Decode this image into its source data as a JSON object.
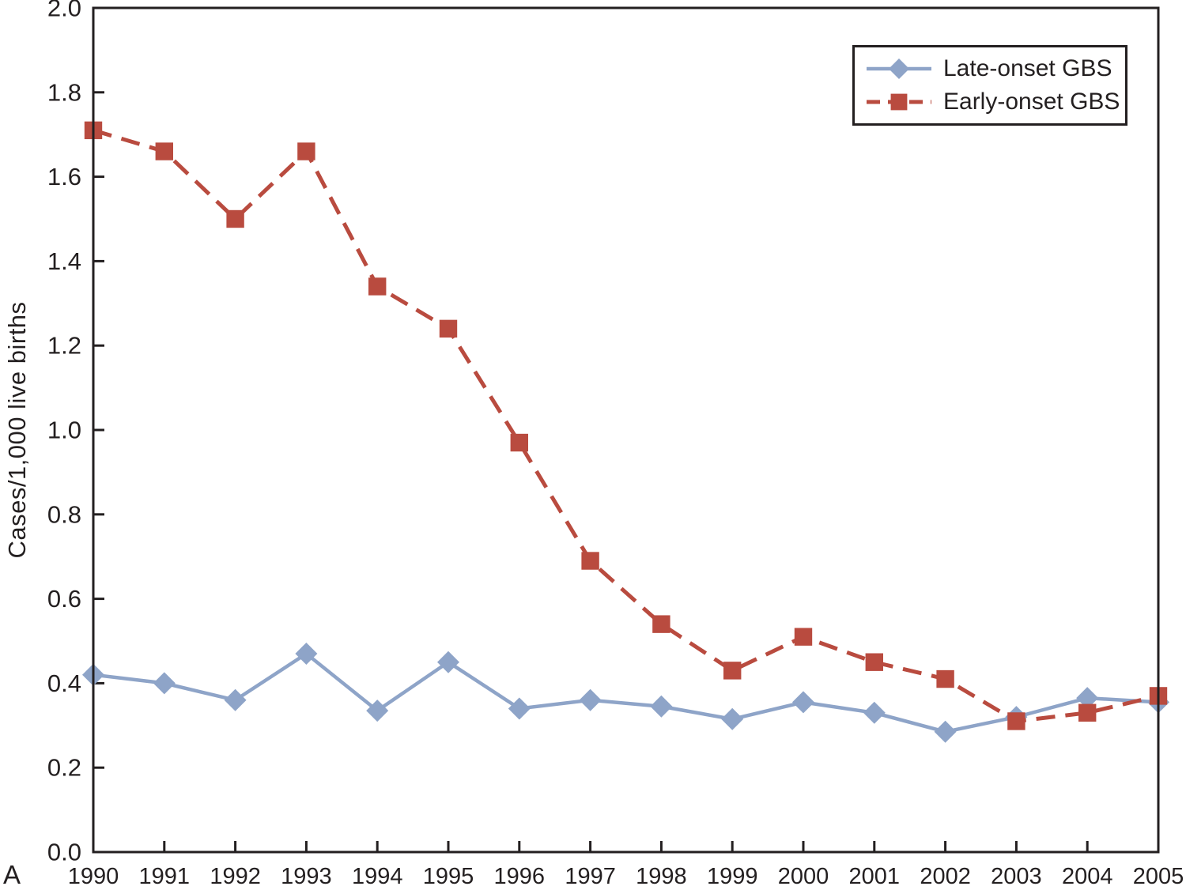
{
  "figure": {
    "panel_label": "A",
    "background": "#ffffff",
    "axis_color": "#231f20",
    "text_color": "#231f20"
  },
  "legend": {
    "position": "top-right",
    "border_color": "#231f20"
  },
  "chart_data": {
    "type": "line",
    "title": "",
    "xlabel": "",
    "ylabel": "Cases/1,000 live births",
    "categories": [
      "1990",
      "1991",
      "1992",
      "1993",
      "1994",
      "1995",
      "1996",
      "1997",
      "1998",
      "1999",
      "2000",
      "2001",
      "2002",
      "2003",
      "2004",
      "2005"
    ],
    "series": [
      {
        "name": "Late-onset GBS",
        "color": "#8ea4c8",
        "marker": "diamond",
        "line_style": "solid",
        "values": [
          0.42,
          0.4,
          0.36,
          0.47,
          0.335,
          0.45,
          0.34,
          0.36,
          0.345,
          0.315,
          0.355,
          0.33,
          0.285,
          0.32,
          0.365,
          0.355
        ]
      },
      {
        "name": "Early-onset GBS",
        "color": "#b94b3f",
        "marker": "square",
        "line_style": "dashed",
        "values": [
          1.71,
          1.66,
          1.5,
          1.66,
          1.34,
          1.24,
          0.97,
          0.69,
          0.54,
          0.43,
          0.51,
          0.45,
          0.41,
          0.31,
          0.33,
          0.37
        ]
      }
    ],
    "ylim": [
      0.0,
      2.0
    ],
    "yticks": [
      "0.0",
      "0.2",
      "0.4",
      "0.6",
      "0.8",
      "1.0",
      "1.2",
      "1.4",
      "1.6",
      "1.8",
      "2.0"
    ],
    "grid": false,
    "legend_position": "top-right"
  }
}
